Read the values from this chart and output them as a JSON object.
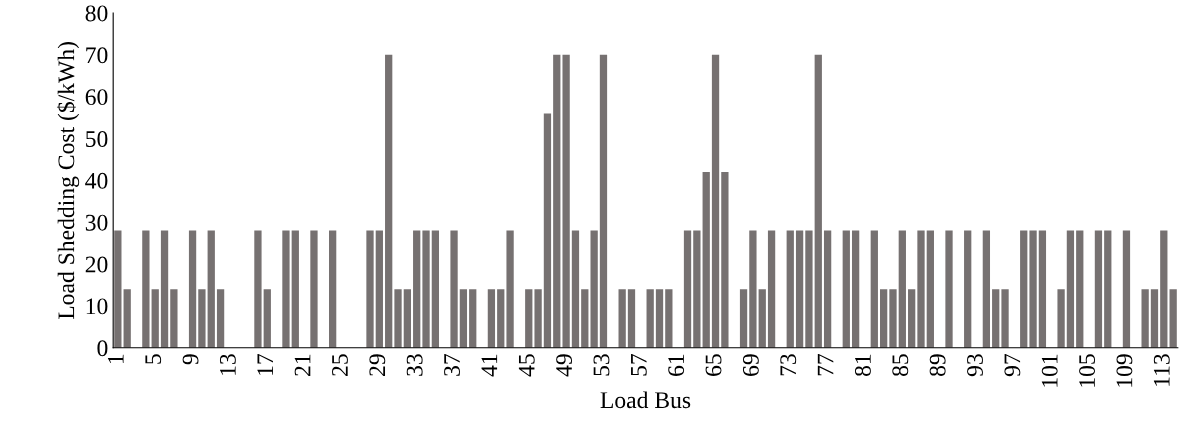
{
  "chart_data": {
    "type": "bar",
    "xlabel": "Load Bus",
    "ylabel": "Load Shedding Cost ($/kWh)",
    "categories": [
      "1",
      null,
      null,
      null,
      "5",
      null,
      null,
      null,
      "9",
      null,
      null,
      null,
      "13",
      null,
      null,
      null,
      "17",
      null,
      null,
      null,
      "21",
      null,
      null,
      null,
      "25",
      null,
      null,
      null,
      "29",
      null,
      null,
      null,
      "33",
      null,
      null,
      null,
      "37",
      null,
      null,
      null,
      "41",
      null,
      null,
      null,
      "45",
      null,
      null,
      null,
      "49",
      null,
      null,
      null,
      "53",
      null,
      null,
      null,
      "57",
      null,
      null,
      null,
      "61",
      null,
      null,
      null,
      "65",
      null,
      null,
      null,
      "69",
      null,
      null,
      null,
      "73",
      null,
      null,
      null,
      "77",
      null,
      null,
      null,
      "81",
      null,
      null,
      null,
      "85",
      null,
      null,
      null,
      "89",
      null,
      null,
      null,
      "93",
      null,
      null,
      null,
      "97",
      null,
      null,
      null,
      "101",
      null,
      null,
      null,
      "105",
      null,
      null,
      null,
      "109",
      null,
      null,
      null,
      "113",
      null
    ],
    "values": [
      28,
      14,
      0,
      28,
      14,
      28,
      14,
      0,
      28,
      14,
      28,
      14,
      0,
      0,
      0,
      28,
      14,
      0,
      28,
      28,
      0,
      28,
      0,
      28,
      0,
      0,
      0,
      28,
      28,
      70,
      14,
      14,
      28,
      28,
      28,
      0,
      28,
      14,
      14,
      0,
      14,
      14,
      28,
      0,
      14,
      14,
      56,
      70,
      70,
      28,
      14,
      28,
      70,
      0,
      14,
      14,
      0,
      14,
      14,
      14,
      0,
      28,
      28,
      42,
      70,
      42,
      0,
      14,
      28,
      14,
      28,
      0,
      28,
      28,
      28,
      70,
      28,
      0,
      28,
      28,
      0,
      28,
      14,
      14,
      28,
      14,
      28,
      28,
      0,
      28,
      0,
      28,
      0,
      28,
      14,
      14,
      0,
      28,
      28,
      28,
      0,
      14,
      28,
      28,
      0,
      28,
      28,
      0,
      28,
      0,
      14,
      14,
      28,
      14
    ],
    "color": "#767171",
    "ylim": [
      0,
      80
    ],
    "yticks": [
      0,
      10,
      20,
      30,
      40,
      50,
      60,
      70,
      80
    ],
    "grid": false,
    "legend": false
  }
}
